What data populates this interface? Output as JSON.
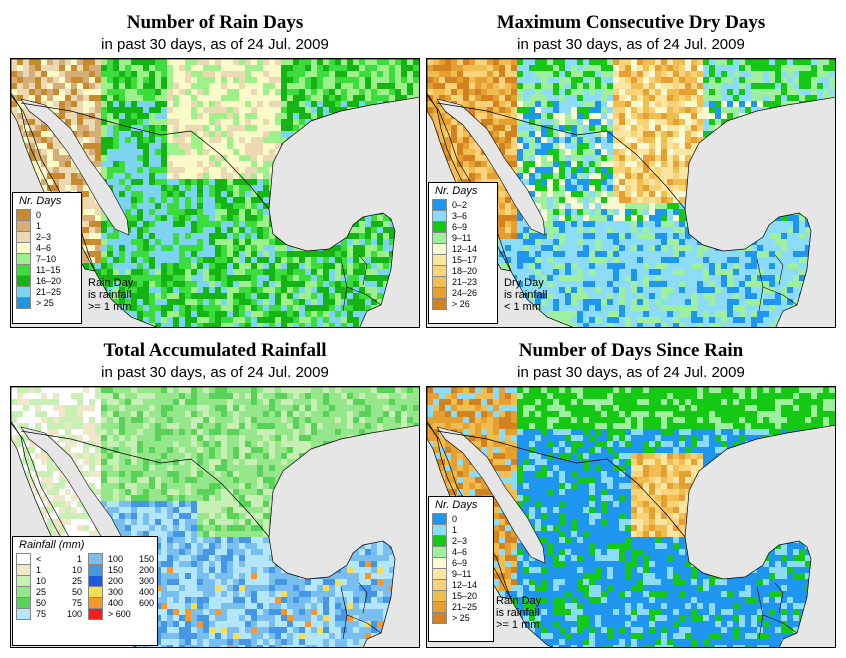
{
  "palette": {
    "ocean": "#e6e6e6",
    "border": "#000000"
  },
  "panels": [
    {
      "id": "rain-days",
      "title": "Number of Rain Days",
      "subtitle": "in past 30 days, as of  24 Jul. 2009",
      "legend_title": "Nr. Days",
      "legend": [
        {
          "label": "0",
          "color": "#c88a2e"
        },
        {
          "label": "1",
          "color": "#d6ad76"
        },
        {
          "label": "2–3",
          "color": "#ead9b2"
        },
        {
          "label": "4–6",
          "color": "#fafac8"
        },
        {
          "label": "7–10",
          "color": "#9ef08a"
        },
        {
          "label": "11–15",
          "color": "#3cdc3c"
        },
        {
          "label": "16–20",
          "color": "#14b414"
        },
        {
          "label": "21–25",
          "color": "#7cd4f0"
        },
        {
          "label": "> 25",
          "color": "#1e96dc"
        }
      ],
      "note": [
        "Rain Day",
        "is rainfall",
        ">= 1 mm"
      ]
    },
    {
      "id": "dry-days",
      "title": "Maximum Consecutive Dry Days",
      "subtitle": "in past 30 days, as of  24 Jul. 2009",
      "legend_title": "Nr. Days",
      "legend": [
        {
          "label": "0–2",
          "color": "#1e96f0"
        },
        {
          "label": "3–6",
          "color": "#8cdcf8"
        },
        {
          "label": "6–9",
          "color": "#14c814"
        },
        {
          "label": "9–11",
          "color": "#9ef09e"
        },
        {
          "label": "12–14",
          "color": "#fafad2"
        },
        {
          "label": "15–17",
          "color": "#fae6a0"
        },
        {
          "label": "18–20",
          "color": "#fad27a"
        },
        {
          "label": "21–23",
          "color": "#f0be50"
        },
        {
          "label": "24–26",
          "color": "#e6a032"
        },
        {
          "label": "> 26",
          "color": "#d2821e"
        }
      ],
      "note": [
        "Dry Day",
        "is rainfall",
        "< 1 mm"
      ]
    },
    {
      "id": "total-rainfall",
      "title": "Total Accumulated Rainfall",
      "subtitle": "in past 30 days, as of  24 Jul. 2009",
      "legend_title": "Rainfall (mm)",
      "legend": [
        {
          "lo": "<",
          "hi": "1",
          "color": "#ffffff"
        },
        {
          "lo": "1",
          "hi": "10",
          "color": "#f0e6c8"
        },
        {
          "lo": "10",
          "hi": "25",
          "color": "#c8f0b4"
        },
        {
          "lo": "25",
          "hi": "50",
          "color": "#96e68c"
        },
        {
          "lo": "50",
          "hi": "75",
          "color": "#5ad25a"
        },
        {
          "lo": "75",
          "hi": "100",
          "color": "#b4e6fa"
        },
        {
          "lo": "100",
          "hi": "150",
          "color": "#78bef0"
        },
        {
          "lo": "150",
          "hi": "200",
          "color": "#4696e6"
        },
        {
          "lo": "200",
          "hi": "300",
          "color": "#1e5adc"
        },
        {
          "lo": "300",
          "hi": "400",
          "color": "#fadc50"
        },
        {
          "lo": "400",
          "hi": "600",
          "color": "#fa9628"
        },
        {
          "lo": "> 600",
          "hi": "",
          "color": "#f01e1e"
        }
      ],
      "note": []
    },
    {
      "id": "days-since-rain",
      "title": "Number of Days Since Rain",
      "subtitle": "in past 30 days, as of  24 Jul. 2009",
      "legend_title": "Nr. Days",
      "legend": [
        {
          "label": "0",
          "color": "#1e96f0"
        },
        {
          "label": "1",
          "color": "#8cdcf8"
        },
        {
          "label": "2–3",
          "color": "#14c814"
        },
        {
          "label": "4–6",
          "color": "#9ef09e"
        },
        {
          "label": "6–9",
          "color": "#fafad2"
        },
        {
          "label": "9–11",
          "color": "#fae6a0"
        },
        {
          "label": "12–14",
          "color": "#fad27a"
        },
        {
          "label": "15–20",
          "color": "#f0be50"
        },
        {
          "label": "21–25",
          "color": "#e6a032"
        },
        {
          "label": "> 25",
          "color": "#d2821e"
        }
      ],
      "note": [
        "Rain Day",
        "is rainfall",
        ">= 1 mm"
      ]
    }
  ]
}
